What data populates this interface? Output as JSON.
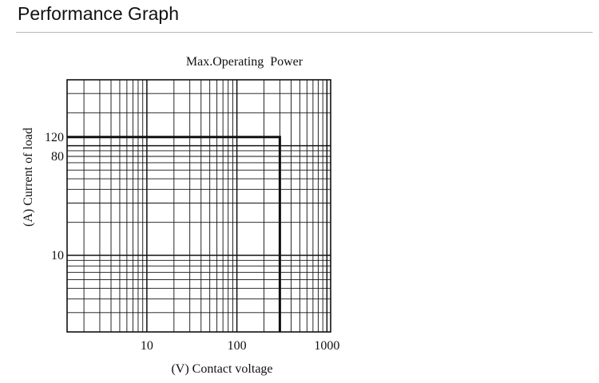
{
  "page": {
    "heading": "Performance Graph"
  },
  "chart_data": {
    "type": "line",
    "title": "Max.Operating  Power",
    "xlabel": "(V) Contact voltage",
    "ylabel": "(A) Current of load",
    "x_scale": "log",
    "y_scale": "log",
    "xlim": [
      1.3,
      1100
    ],
    "ylim": [
      2,
      400
    ],
    "grid": true,
    "x_ticks": [
      {
        "value": 10,
        "label": "10"
      },
      {
        "value": 100,
        "label": "100"
      },
      {
        "value": 1000,
        "label": "1000"
      }
    ],
    "y_ticks": [
      {
        "value": 10,
        "label": "10"
      },
      {
        "value": 80,
        "label": "80"
      },
      {
        "value": 120,
        "label": "120"
      }
    ],
    "series": [
      {
        "x": [
          1.3,
          300,
          300
        ],
        "y": [
          120,
          120,
          2
        ]
      }
    ],
    "colors": {
      "grid": "#111111",
      "line": "#111111"
    }
  }
}
